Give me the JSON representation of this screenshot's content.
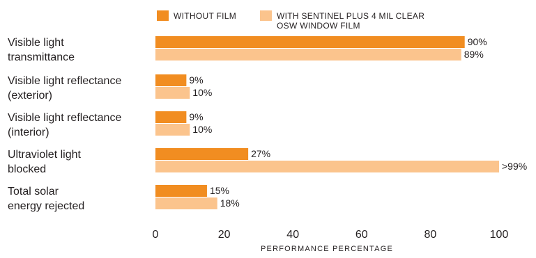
{
  "chart_data": {
    "type": "bar",
    "orientation": "horizontal",
    "categories": [
      [
        "Visible light",
        "transmittance"
      ],
      [
        "Visible light reflectance",
        "(exterior)"
      ],
      [
        "Visible light reflectance",
        "(interior)"
      ],
      [
        "Ultraviolet light",
        "blocked"
      ],
      [
        "Total solar",
        "energy rejected"
      ]
    ],
    "series": [
      {
        "name": "WITHOUT FILM",
        "color": "#f18d21",
        "values": [
          90,
          9,
          9,
          27,
          15
        ],
        "labels": [
          "90%",
          "9%",
          "9%",
          "27%",
          "15%"
        ]
      },
      {
        "name": [
          "WITH SENTINEL PLUS 4 MIL CLEAR",
          "OSW WINDOW FILM"
        ],
        "color": "#fbc48d",
        "values": [
          89,
          10,
          10,
          100,
          18
        ],
        "labels": [
          "89%",
          "10%",
          "10%",
          ">99%",
          "18%"
        ]
      }
    ],
    "xlim": [
      0,
      100
    ],
    "xticks": [
      0,
      20,
      40,
      60,
      80,
      100
    ],
    "xlabel": "PERFORMANCE PERCENTAGE",
    "legend_position": "top",
    "grid": false
  }
}
